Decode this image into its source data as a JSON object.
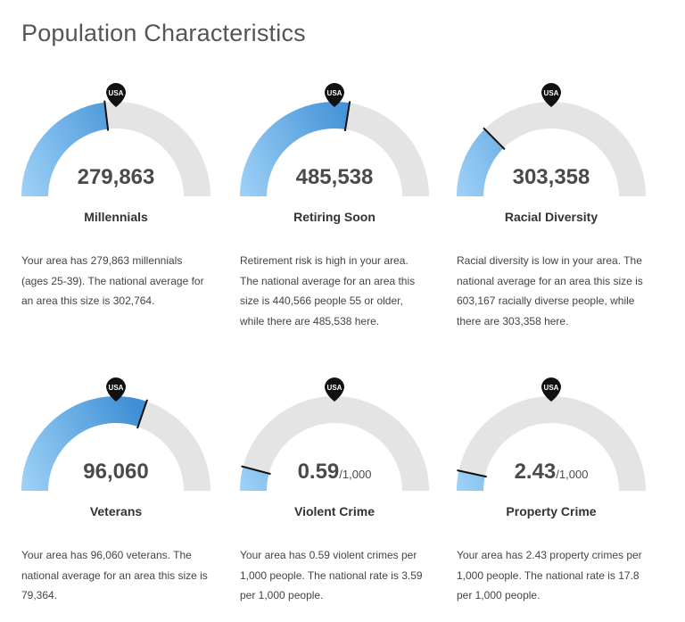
{
  "page": {
    "title": "Population Characteristics"
  },
  "colors": {
    "track": "#e4e4e4",
    "fill_light": "#9fd2f7",
    "fill_dark": "#3f8fd6",
    "marker": "#111111"
  },
  "marker_label": "USA",
  "gauges": [
    {
      "id": "millennials",
      "value": "279,863",
      "unit": "",
      "title": "Millennials",
      "description": "Your area has 279,863 millennials (ages 25-39). The national average for an area this size is 302,764.",
      "area_value": 279863,
      "national_value": 302764
    },
    {
      "id": "retiring-soon",
      "value": "485,538",
      "unit": "",
      "title": "Retiring Soon",
      "description": "Retirement risk is high in your area. The national average for an area this size is 440,566 people 55 or older, while there are 485,538 here.",
      "area_value": 485538,
      "national_value": 440566
    },
    {
      "id": "racial-diversity",
      "value": "303,358",
      "unit": "",
      "title": "Racial Diversity",
      "description": "Racial diversity is low in your area. The national average for an area this size is 603,167 racially diverse people, while there are 303,358 here.",
      "area_value": 303358,
      "national_value": 603167
    },
    {
      "id": "veterans",
      "value": "96,060",
      "unit": "",
      "title": "Veterans",
      "description": "Your area has 96,060 veterans. The national average for an area this size is 79,364.",
      "area_value": 96060,
      "national_value": 79364
    },
    {
      "id": "violent-crime",
      "value": "0.59",
      "unit": "/1,000",
      "title": "Violent Crime",
      "description": "Your area has 0.59 violent crimes per 1,000 people. The national rate is 3.59 per 1,000 people.",
      "area_value": 0.59,
      "national_value": 3.59
    },
    {
      "id": "property-crime",
      "value": "2.43",
      "unit": "/1,000",
      "title": "Property Crime",
      "description": "Your area has 2.43 property crimes per 1,000 people. The national rate is 17.8 per 1,000 people.",
      "area_value": 2.43,
      "national_value": 17.8
    }
  ]
}
